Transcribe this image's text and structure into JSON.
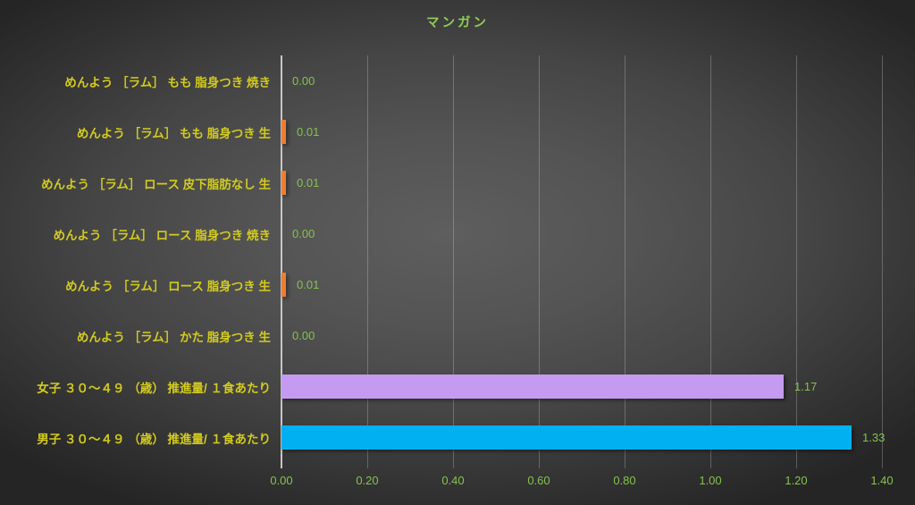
{
  "title": "マンガン",
  "chart_data": {
    "type": "bar",
    "orientation": "horizontal",
    "title": "マンガン",
    "categories": [
      "めんよう ［ラム］ もも  脂身つき  焼き",
      "めんよう ［ラム］ もも  脂身つき  生",
      "めんよう ［ラム］ ロース  皮下脂肪なし  生",
      "めんよう ［ラム］ ロース  脂身つき  焼き",
      "めんよう ［ラム］ ロース  脂身つき  生",
      "めんよう ［ラム］ かた  脂身つき  生",
      "女子 ３０～４９ （歳） 推進量/ １食あたり",
      "男子 ３０～４９ （歳） 推進量/ １食あたり"
    ],
    "values": [
      0.0,
      0.01,
      0.01,
      0.0,
      0.01,
      0.0,
      1.17,
      1.33
    ],
    "value_labels": [
      "0.00",
      "0.01",
      "0.01",
      "0.00",
      "0.01",
      "0.00",
      "1.17",
      "1.33"
    ],
    "bar_colors": [
      "#ED7D31",
      "#ED7D31",
      "#ED7D31",
      "#ED7D31",
      "#ED7D31",
      "#ED7D31",
      "#C49BF0",
      "#00B0F0"
    ],
    "xlim": [
      0,
      1.4
    ],
    "x_ticks": [
      "0.00",
      "0.20",
      "0.40",
      "0.60",
      "0.80",
      "1.00",
      "1.20",
      "1.40"
    ],
    "grid": true,
    "legend_position": "none"
  },
  "colors": {
    "title_text": "#90CE58",
    "category_label_text": "#D2CB1F",
    "value_label_text": "#85C24E",
    "tick_label_text": "#85C24E",
    "gridline": "rgba(225,225,225,0.28)",
    "axis_line": "#C6C6C6",
    "bar_orange": "#ED7D31",
    "bar_purple": "#C49BF0",
    "bar_blue": "#00B0F0"
  }
}
